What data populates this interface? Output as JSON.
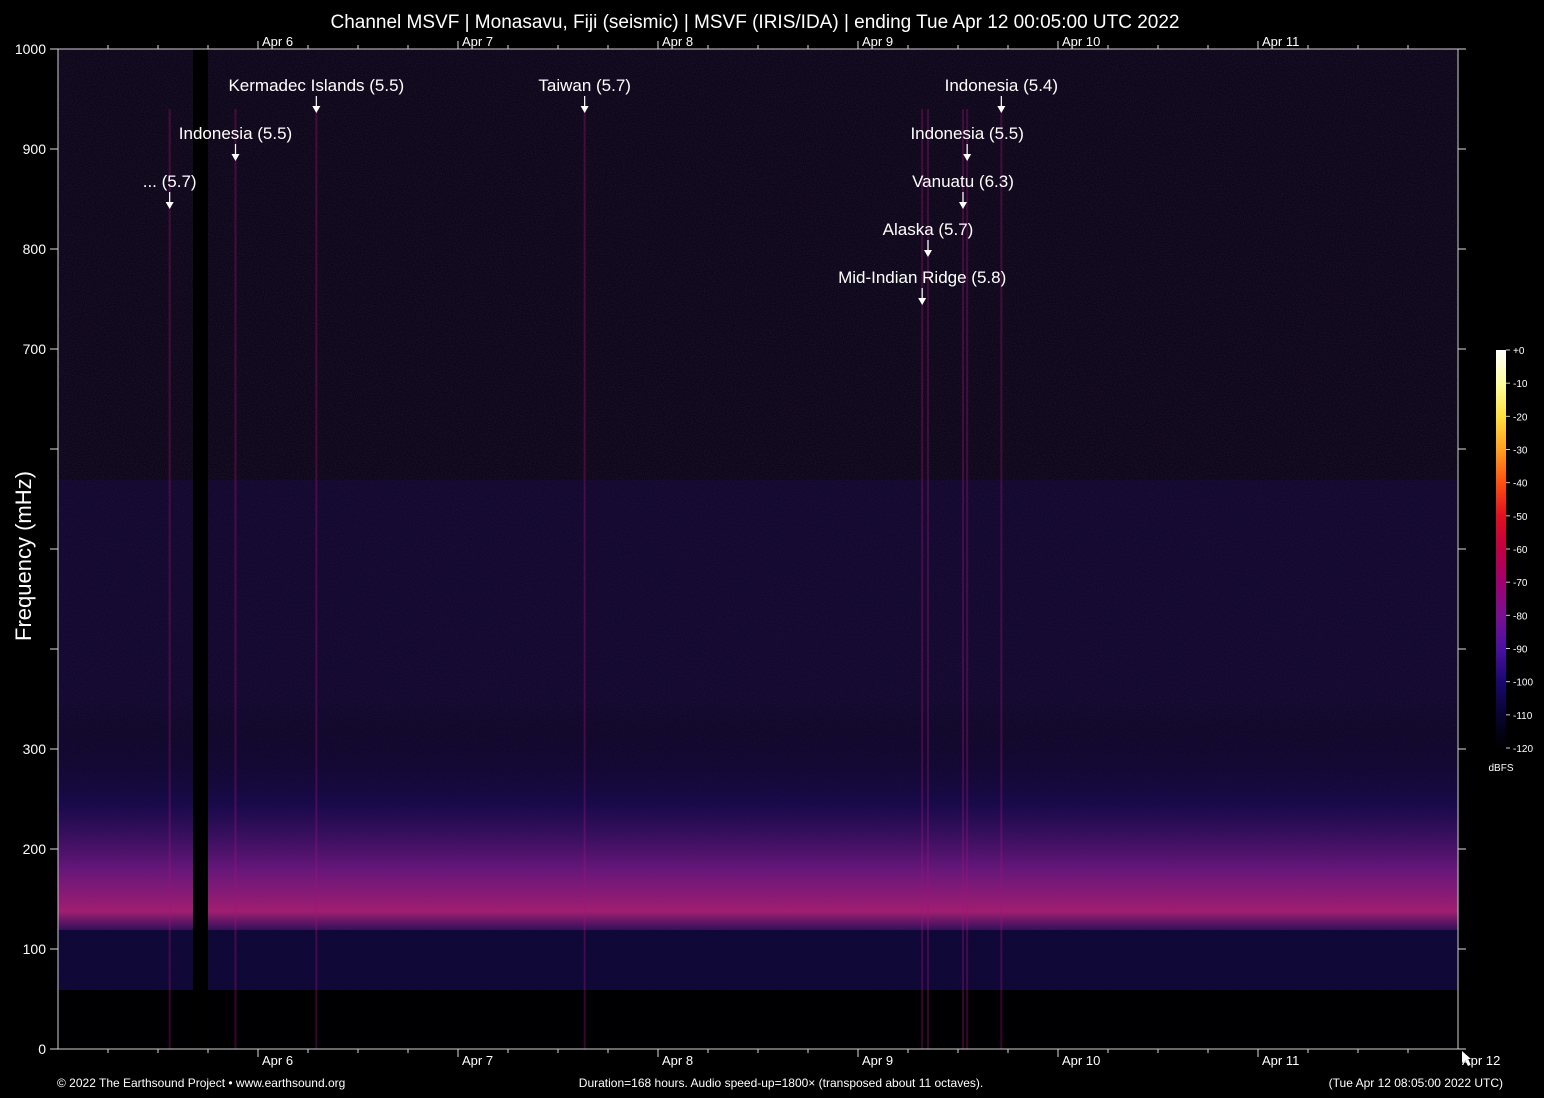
{
  "chart_data": {
    "type": "heatmap",
    "title": "Channel MSVF | Monasavu, Fiji (seismic) | MSVF (IRIS/IDA) | ending Tue Apr 12 00:05:00 UTC 2022",
    "ylabel": "Frequency (mHz)",
    "ylim": [
      0,
      1000
    ],
    "y_ticks": [
      {
        "value": 0,
        "label": "0"
      },
      {
        "value": 100,
        "label": "100"
      },
      {
        "value": 200,
        "label": "200"
      },
      {
        "value": 300,
        "label": "300"
      },
      {
        "value": 400,
        "label": ""
      },
      {
        "value": 500,
        "label": ""
      },
      {
        "value": 600,
        "label": ""
      },
      {
        "value": 700,
        "label": "700"
      },
      {
        "value": 800,
        "label": "800"
      },
      {
        "value": 900,
        "label": "900"
      },
      {
        "value": 1000,
        "label": "1000"
      }
    ],
    "x_range_hours": [
      0,
      168
    ],
    "x_ticks": [
      {
        "hour": 24,
        "label": "Apr 6"
      },
      {
        "hour": 48,
        "label": "Apr 7"
      },
      {
        "hour": 72,
        "label": "Apr 8"
      },
      {
        "hour": 96,
        "label": "Apr 9"
      },
      {
        "hour": 120,
        "label": "Apr 10"
      },
      {
        "hour": 144,
        "label": "Apr 11"
      },
      {
        "hour": 168,
        "label": "Apr 12"
      }
    ],
    "events": [
      {
        "label": "Kermadec Islands (5.5)",
        "hour": 31.0,
        "row": 1
      },
      {
        "label": "Indonesia (5.5)",
        "hour": 21.3,
        "row": 2
      },
      {
        "label": "... (5.7)",
        "hour": 13.4,
        "row": 3
      },
      {
        "label": "Taiwan (5.7)",
        "hour": 63.2,
        "row": 1
      },
      {
        "label": "Indonesia (5.4)",
        "hour": 113.2,
        "row": 1
      },
      {
        "label": "Indonesia (5.5)",
        "hour": 109.1,
        "row": 2
      },
      {
        "label": "Vanuatu (6.3)",
        "hour": 108.6,
        "row": 3
      },
      {
        "label": "Alaska (5.7)",
        "hour": 104.4,
        "row": 4
      },
      {
        "label": "Mid-Indian Ridge (5.8)",
        "hour": 103.7,
        "row": 5
      }
    ],
    "colorbar": {
      "unit": "dBFS",
      "ticks": [
        "+0",
        "-10",
        "-20",
        "-30",
        "-40",
        "-50",
        "-60",
        "-70",
        "-80",
        "-90",
        "-100",
        "-110",
        "-120"
      ],
      "colors": [
        "#ffffff",
        "#ffffa0",
        "#ffe040",
        "#ffa020",
        "#ff5010",
        "#e01020",
        "#c00040",
        "#a00070",
        "#7a1090",
        "#4a10a0",
        "#1a0870",
        "#080430",
        "#000000"
      ]
    }
  },
  "footer": {
    "left": "© 2022 The Earthsound Project • www.earthsound.org",
    "center": "Duration=168 hours. Audio speed-up=1800× (transposed about 11 octaves).",
    "right": "(Tue Apr 12 08:05:00 2022 UTC)"
  }
}
